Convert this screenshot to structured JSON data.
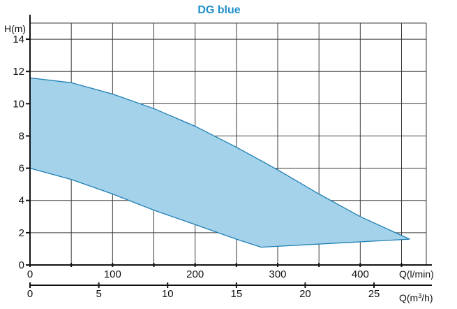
{
  "chart_data": {
    "type": "area",
    "title": "DG blue",
    "ylabel": "H(m)",
    "xlabel_primary": "Q(l/min)",
    "xlabel_secondary_prefix": "Q(m",
    "xlabel_secondary_sup": "3",
    "xlabel_secondary_suffix": "/h)",
    "xlim_primary": [
      0,
      480
    ],
    "xlim_secondary": [
      0,
      28.8
    ],
    "ylim": [
      0,
      15
    ],
    "grid": true,
    "y_ticks": [
      "0",
      "2",
      "4",
      "6",
      "8",
      "10",
      "12",
      "14"
    ],
    "y_tick_values": [
      0,
      2,
      4,
      6,
      8,
      10,
      12,
      14
    ],
    "x_ticks_primary": [
      "0",
      "100",
      "200",
      "300",
      "400"
    ],
    "x_tick_values_primary": [
      0,
      100,
      200,
      300,
      400
    ],
    "x_ticks_secondary": [
      "0",
      "5",
      "10",
      "15",
      "20",
      "25"
    ],
    "x_tick_values_secondary": [
      0,
      5,
      10,
      15,
      20,
      25
    ],
    "series": [
      {
        "role": "upper",
        "x": [
          0,
          50,
          100,
          150,
          200,
          250,
          300,
          350,
          400,
          460
        ],
        "y": [
          11.6,
          11.3,
          10.6,
          9.7,
          8.6,
          7.3,
          5.9,
          4.4,
          3.0,
          1.6
        ]
      },
      {
        "role": "lower",
        "x": [
          0,
          50,
          100,
          150,
          200,
          250,
          280,
          460
        ],
        "y": [
          6.0,
          5.3,
          4.4,
          3.4,
          2.5,
          1.6,
          1.1,
          1.6
        ]
      }
    ],
    "colors": {
      "fill": "#a3d2ea",
      "stroke": "#1f7fb3",
      "title": "#1f8fc9",
      "grid": "#3a3a3a"
    }
  }
}
